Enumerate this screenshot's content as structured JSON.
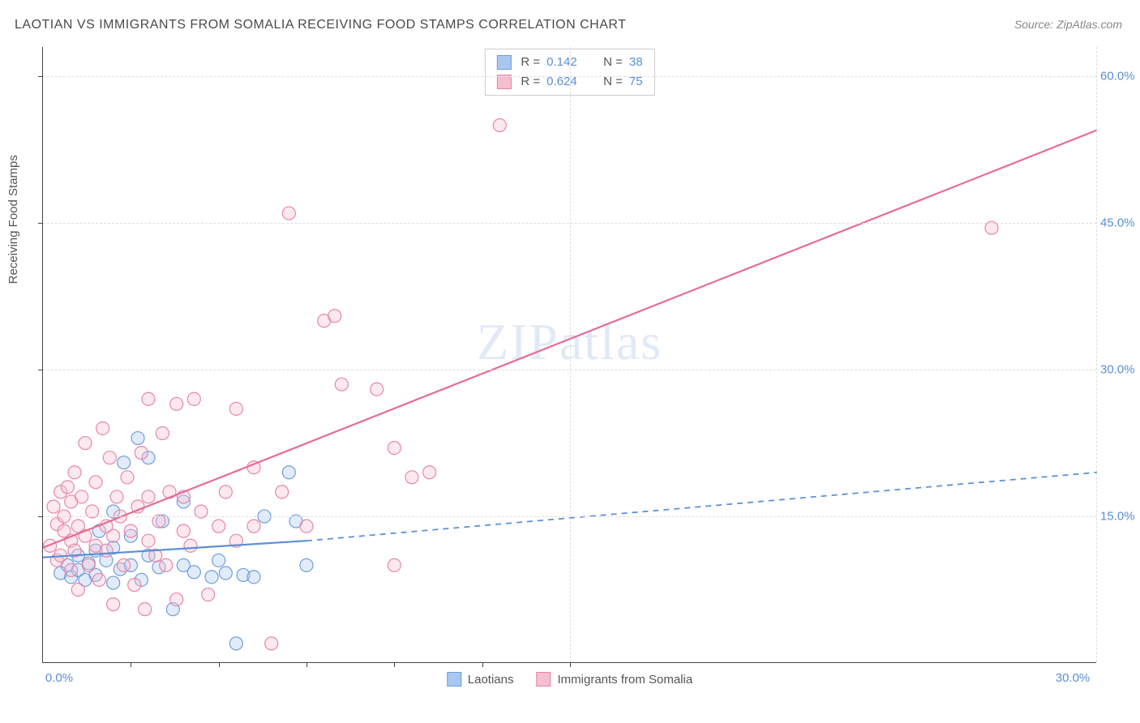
{
  "title": "LAOTIAN VS IMMIGRANTS FROM SOMALIA RECEIVING FOOD STAMPS CORRELATION CHART",
  "source": "Source: ZipAtlas.com",
  "y_axis_label": "Receiving Food Stamps",
  "watermark_zip": "ZIP",
  "watermark_atlas": "atlas",
  "chart": {
    "type": "scatter",
    "background_color": "#ffffff",
    "grid_color": "#dddddd",
    "axis_color": "#444444",
    "tick_label_color": "#5b8fd6",
    "xlim": [
      0,
      30
    ],
    "ylim": [
      0,
      63
    ],
    "y_ticks": [
      15.0,
      30.0,
      45.0,
      60.0
    ],
    "y_tick_labels": [
      "15.0%",
      "30.0%",
      "45.0%",
      "60.0%"
    ],
    "x_ticks_major": [
      0,
      30
    ],
    "x_tick_labels": [
      "0.0%",
      "30.0%"
    ],
    "x_minor_ticks": [
      2.5,
      5,
      7.5,
      10,
      12.5,
      15
    ],
    "marker_radius": 8,
    "marker_fill_opacity": 0.35,
    "line_width": 2.2,
    "series": [
      {
        "id": "laotians",
        "name": "Laotians",
        "color_fill": "#a9c7f0",
        "color_stroke": "#6f9fd8",
        "trend_color": "#5b8fd6",
        "R": "0.142",
        "N": "38",
        "trend": {
          "x1": 0,
          "y1": 10.8,
          "x2_solid": 7.5,
          "y2_solid": 12.5,
          "x2": 30,
          "y2": 19.5
        },
        "points": [
          [
            0.5,
            9.2
          ],
          [
            0.7,
            10.0
          ],
          [
            0.8,
            8.8
          ],
          [
            1.0,
            9.5
          ],
          [
            1.0,
            11.0
          ],
          [
            1.2,
            8.5
          ],
          [
            1.3,
            10.2
          ],
          [
            1.5,
            9.0
          ],
          [
            1.5,
            11.5
          ],
          [
            1.6,
            13.5
          ],
          [
            1.8,
            10.5
          ],
          [
            2.0,
            8.2
          ],
          [
            2.0,
            11.8
          ],
          [
            2.0,
            15.5
          ],
          [
            2.2,
            9.6
          ],
          [
            2.3,
            20.5
          ],
          [
            2.5,
            10.0
          ],
          [
            2.5,
            13.0
          ],
          [
            2.7,
            23.0
          ],
          [
            2.8,
            8.5
          ],
          [
            3.0,
            11.0
          ],
          [
            3.0,
            21.0
          ],
          [
            3.3,
            9.8
          ],
          [
            3.4,
            14.5
          ],
          [
            3.7,
            5.5
          ],
          [
            4.0,
            10.0
          ],
          [
            4.0,
            16.5
          ],
          [
            4.3,
            9.3
          ],
          [
            4.8,
            8.8
          ],
          [
            5.0,
            10.5
          ],
          [
            5.2,
            9.2
          ],
          [
            5.5,
            2.0
          ],
          [
            5.7,
            9.0
          ],
          [
            6.0,
            8.8
          ],
          [
            6.3,
            15.0
          ],
          [
            7.0,
            19.5
          ],
          [
            7.2,
            14.5
          ],
          [
            7.5,
            10.0
          ]
        ]
      },
      {
        "id": "somalia",
        "name": "Immigrants from Somalia",
        "color_fill": "#f5bfcf",
        "color_stroke": "#e986a7",
        "trend_color": "#e86b94",
        "R": "0.624",
        "N": "75",
        "trend": {
          "x1": 0,
          "y1": 11.8,
          "x2_solid": 30,
          "y2_solid": 54.5,
          "x2": 30,
          "y2": 54.5
        },
        "points": [
          [
            0.2,
            12.0
          ],
          [
            0.3,
            16.0
          ],
          [
            0.4,
            10.5
          ],
          [
            0.4,
            14.2
          ],
          [
            0.5,
            17.5
          ],
          [
            0.5,
            11.0
          ],
          [
            0.6,
            13.5
          ],
          [
            0.6,
            15.0
          ],
          [
            0.7,
            18.0
          ],
          [
            0.8,
            12.5
          ],
          [
            0.8,
            9.5
          ],
          [
            0.8,
            16.5
          ],
          [
            0.9,
            11.5
          ],
          [
            0.9,
            19.5
          ],
          [
            1.0,
            14.0
          ],
          [
            1.0,
            7.5
          ],
          [
            1.1,
            17.0
          ],
          [
            1.2,
            13.0
          ],
          [
            1.2,
            22.5
          ],
          [
            1.3,
            10.0
          ],
          [
            1.4,
            15.5
          ],
          [
            1.5,
            12.0
          ],
          [
            1.5,
            18.5
          ],
          [
            1.6,
            8.5
          ],
          [
            1.7,
            24.0
          ],
          [
            1.8,
            14.0
          ],
          [
            1.8,
            11.5
          ],
          [
            1.9,
            21.0
          ],
          [
            2.0,
            13.0
          ],
          [
            2.0,
            6.0
          ],
          [
            2.1,
            17.0
          ],
          [
            2.2,
            15.0
          ],
          [
            2.3,
            10.0
          ],
          [
            2.4,
            19.0
          ],
          [
            2.5,
            13.5
          ],
          [
            2.6,
            8.0
          ],
          [
            2.7,
            16.0
          ],
          [
            2.8,
            21.5
          ],
          [
            2.9,
            5.5
          ],
          [
            3.0,
            12.5
          ],
          [
            3.0,
            27.0
          ],
          [
            3.0,
            17.0
          ],
          [
            3.2,
            11.0
          ],
          [
            3.3,
            14.5
          ],
          [
            3.4,
            23.5
          ],
          [
            3.5,
            10.0
          ],
          [
            3.6,
            17.5
          ],
          [
            3.8,
            6.5
          ],
          [
            3.8,
            26.5
          ],
          [
            4.0,
            13.5
          ],
          [
            4.0,
            17.0
          ],
          [
            4.2,
            12.0
          ],
          [
            4.3,
            27.0
          ],
          [
            4.5,
            15.5
          ],
          [
            4.7,
            7.0
          ],
          [
            5.0,
            14.0
          ],
          [
            5.2,
            17.5
          ],
          [
            5.5,
            12.5
          ],
          [
            5.5,
            26.0
          ],
          [
            6.0,
            14.0
          ],
          [
            6.0,
            20.0
          ],
          [
            6.5,
            2.0
          ],
          [
            6.8,
            17.5
          ],
          [
            7.0,
            46.0
          ],
          [
            7.5,
            14.0
          ],
          [
            8.0,
            35.0
          ],
          [
            8.3,
            35.5
          ],
          [
            8.5,
            28.5
          ],
          [
            9.5,
            28.0
          ],
          [
            10.0,
            22.0
          ],
          [
            10.0,
            10.0
          ],
          [
            10.5,
            19.0
          ],
          [
            11.0,
            19.5
          ],
          [
            13.0,
            55.0
          ],
          [
            27.0,
            44.5
          ]
        ]
      }
    ]
  },
  "legend_bottom": [
    {
      "swatch_fill": "#a9c7f0",
      "swatch_stroke": "#6f9fd8",
      "label": "Laotians"
    },
    {
      "swatch_fill": "#f5bfcf",
      "swatch_stroke": "#e986a7",
      "label": "Immigrants from Somalia"
    }
  ]
}
